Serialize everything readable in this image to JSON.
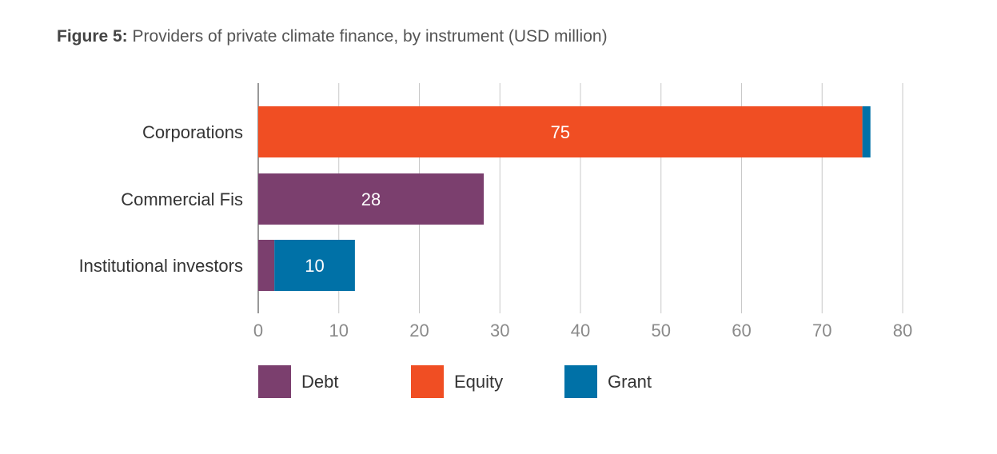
{
  "figure": {
    "label": "Figure 5:",
    "caption": " Providers of private climate finance, by instrument (USD million)"
  },
  "colors": {
    "debt": "#7b3f6e",
    "equity": "#f04e23",
    "grant": "#0071a7",
    "grid": "#c8c8c8",
    "tick": "#8a8a8a",
    "label": "#333333"
  },
  "chart_data": {
    "type": "bar",
    "orientation": "horizontal",
    "stacked": true,
    "categories": [
      "Corporations",
      "Commercial Fis",
      "Institutional investors"
    ],
    "series": [
      {
        "name": "Debt",
        "color": "#7b3f6e",
        "values": [
          0,
          28,
          2
        ]
      },
      {
        "name": "Equity",
        "color": "#f04e23",
        "values": [
          75,
          0,
          0
        ]
      },
      {
        "name": "Grant",
        "color": "#0071a7",
        "values": [
          1,
          0,
          10
        ]
      }
    ],
    "data_labels": [
      "75",
      "28",
      "10"
    ],
    "xlim": [
      0,
      80
    ],
    "xticks": [
      0,
      10,
      20,
      30,
      40,
      50,
      60,
      70,
      80
    ],
    "grid": true,
    "legend": "bottom"
  }
}
